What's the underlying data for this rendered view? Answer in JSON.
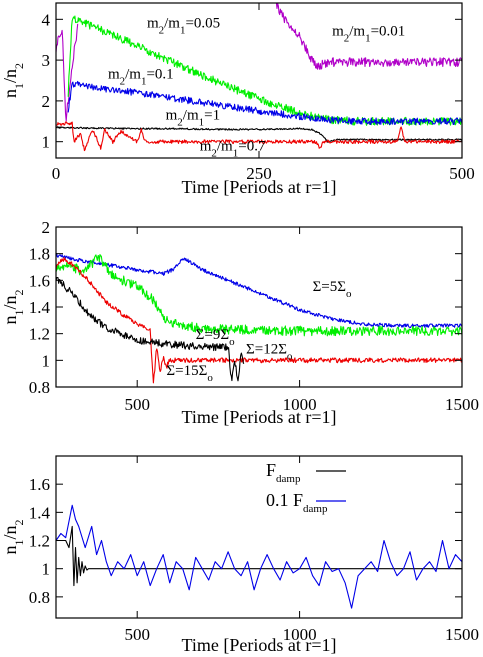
{
  "chart_data": [
    {
      "type": "line",
      "xlabel": "Time [Periods at r=1]",
      "ylabel": "n_1/n_2",
      "xlim": [
        0,
        500
      ],
      "ylim": [
        0.6,
        4.4
      ],
      "xticks": [
        0,
        250,
        500
      ],
      "yticks": [
        1,
        2,
        3,
        4
      ],
      "grid": false,
      "series": [
        {
          "name": "m2/m1=0.01",
          "color": "#b000c8",
          "noise": 0.12,
          "seed": 11,
          "x": [
            0,
            3,
            8,
            12,
            15,
            18,
            22,
            27
          ],
          "y": [
            3.3,
            3.5,
            3.7,
            1.5,
            2.0,
            2.5,
            3.2,
            3.85
          ],
          "x2": [
            268,
            275,
            285,
            300,
            310,
            320,
            340,
            400,
            450,
            500
          ],
          "y2": [
            4.6,
            4.2,
            3.9,
            3.6,
            3.2,
            2.85,
            2.95,
            2.95,
            2.95,
            2.95
          ]
        },
        {
          "name": "m2/m1=0.05",
          "color": "#00ee00",
          "noise": 0.11,
          "seed": 23,
          "x": [
            15,
            20,
            30,
            60,
            100,
            150,
            200,
            250,
            300,
            330,
            370,
            420,
            500
          ],
          "y": [
            2.2,
            4.05,
            3.95,
            3.7,
            3.35,
            2.9,
            2.45,
            2.05,
            1.7,
            1.55,
            1.5,
            1.5,
            1.5
          ]
        },
        {
          "name": "m2/m1=0.1",
          "color": "#0000e8",
          "noise": 0.09,
          "seed": 37,
          "x": [
            15,
            20,
            30,
            60,
            100,
            150,
            200,
            250,
            300,
            330,
            370,
            420,
            500
          ],
          "y": [
            1.8,
            2.4,
            2.4,
            2.3,
            2.2,
            2.05,
            1.9,
            1.75,
            1.62,
            1.55,
            1.5,
            1.5,
            1.5
          ]
        },
        {
          "name": "m2/m1=1",
          "color": "#000000",
          "noise": 0.02,
          "seed": 41,
          "x": [
            0,
            50,
            100,
            150,
            200,
            250,
            300,
            315,
            325,
            335,
            345,
            360,
            400,
            500
          ],
          "y": [
            1.35,
            1.33,
            1.32,
            1.32,
            1.3,
            1.3,
            1.32,
            1.3,
            1.2,
            1.0,
            1.05,
            1.05,
            1.05,
            1.05
          ]
        },
        {
          "name": "m2/m1=0.7",
          "color": "#ee0000",
          "noise": 0.05,
          "seed": 53,
          "x": [
            0,
            20,
            22,
            30,
            35,
            45,
            55,
            60,
            70,
            80,
            100,
            105,
            110,
            130,
            200,
            320,
            325,
            330,
            400,
            420,
            425,
            430,
            500
          ],
          "y": [
            1.45,
            1.45,
            1.0,
            1.2,
            0.8,
            1.3,
            0.85,
            1.3,
            1.0,
            1.25,
            1.0,
            1.3,
            1.0,
            1.0,
            1.0,
            1.0,
            0.85,
            1.0,
            1.0,
            1.0,
            1.35,
            1.0,
            1.0
          ]
        }
      ],
      "annotations": [
        {
          "label": "m2/m1=0.05",
          "base": "m",
          "sub1": "2",
          "mid": "/m",
          "sub2": "1",
          "tail": "=0.05",
          "x": 112,
          "y": 3.8
        },
        {
          "label": "m2/m1=0.01",
          "base": "m",
          "sub1": "2",
          "mid": "/m",
          "sub2": "1",
          "tail": "=0.01",
          "x": 340,
          "y": 3.6
        },
        {
          "label": "m2/m1=0.1",
          "base": "m",
          "sub1": "2",
          "mid": "/m",
          "sub2": "1",
          "tail": "=0.1",
          "x": 64,
          "y": 2.55
        },
        {
          "label": "m2/m1=1",
          "base": "m",
          "sub1": "2",
          "mid": "/m",
          "sub2": "1",
          "tail": "=1",
          "x": 135,
          "y": 1.55
        },
        {
          "label": "m2/m1=0.7",
          "base": "m",
          "sub1": "2",
          "mid": "/m",
          "sub2": "1",
          "tail": "=0.7",
          "x": 177,
          "y": 0.78
        }
      ]
    },
    {
      "type": "line",
      "xlabel": "Time [Periods at r=1]",
      "ylabel": "n_1/n_2",
      "xlim": [
        250,
        1500
      ],
      "ylim": [
        0.8,
        2.0
      ],
      "xticks": [
        500,
        1000,
        1500
      ],
      "yticks": [
        0.8,
        1,
        1.2,
        1.4,
        1.6,
        1.8,
        2
      ],
      "grid": false,
      "series": [
        {
          "name": "Σ=5Σo",
          "color": "#0000e8",
          "noise": 0.015,
          "seed": 61,
          "x": [
            250,
            300,
            400,
            500,
            580,
            610,
            640,
            650,
            700,
            800,
            900,
            1000,
            1100,
            1200,
            1300,
            1400,
            1500
          ],
          "y": [
            1.79,
            1.76,
            1.72,
            1.68,
            1.65,
            1.68,
            1.76,
            1.76,
            1.68,
            1.58,
            1.48,
            1.38,
            1.31,
            1.27,
            1.26,
            1.26,
            1.26
          ]
        },
        {
          "name": "Σ=9Σo",
          "color": "#00ee00",
          "noise": 0.04,
          "seed": 67,
          "x": [
            250,
            300,
            330,
            360,
            380,
            400,
            430,
            500,
            550,
            580,
            600,
            650,
            700,
            800,
            1000,
            1500
          ],
          "y": [
            1.7,
            1.7,
            1.67,
            1.72,
            1.78,
            1.72,
            1.62,
            1.56,
            1.45,
            1.33,
            1.28,
            1.26,
            1.24,
            1.23,
            1.22,
            1.22
          ]
        },
        {
          "name": "Σ=12Σo",
          "color": "#ee0000",
          "noise": 0.02,
          "seed": 71,
          "x": [
            250,
            270,
            300,
            350,
            400,
            450,
            500,
            540,
            550,
            560,
            570,
            580,
            590,
            600,
            620,
            700,
            1500
          ],
          "y": [
            1.7,
            1.76,
            1.72,
            1.6,
            1.45,
            1.35,
            1.27,
            1.22,
            0.82,
            1.1,
            0.9,
            1.02,
            0.95,
            1.0,
            1.0,
            1.0,
            1.0
          ]
        },
        {
          "name": "Σ=15Σo",
          "color": "#000000",
          "noise": 0.03,
          "seed": 79,
          "x": [
            250,
            300,
            350,
            400,
            450,
            500,
            600,
            700,
            780,
            790,
            800,
            810,
            820,
            830
          ],
          "y": [
            1.62,
            1.5,
            1.35,
            1.25,
            1.2,
            1.15,
            1.12,
            1.1,
            1.1,
            0.85,
            1.0,
            0.85,
            1.05,
            0.98
          ]
        }
      ],
      "annotations": [
        {
          "label": "Σ=5Σo",
          "base": "Σ=5Σ",
          "sub1": "o",
          "mid": "",
          "sub2": "",
          "tail": "",
          "x": 1040,
          "y": 1.52
        },
        {
          "label": "Σ=9Σo",
          "base": "Σ=9Σ",
          "sub1": "o",
          "mid": "",
          "sub2": "",
          "tail": "",
          "x": 680,
          "y": 1.16
        },
        {
          "label": "Σ=12Σo",
          "base": "Σ=12Σ",
          "sub1": "o",
          "mid": "",
          "sub2": "",
          "tail": "",
          "x": 835,
          "y": 1.05
        },
        {
          "label": "Σ=15Σo",
          "base": "Σ=15Σ",
          "sub1": "o",
          "mid": "",
          "sub2": "",
          "tail": "",
          "x": 590,
          "y": 0.89
        }
      ]
    },
    {
      "type": "line",
      "xlabel": "Time [Periods at r=1]",
      "ylabel": "n_1/n_2",
      "xlim": [
        250,
        1500
      ],
      "ylim": [
        0.65,
        1.8
      ],
      "xticks": [
        500,
        1000,
        1500
      ],
      "yticks": [
        0.8,
        1,
        1.2,
        1.4,
        1.6
      ],
      "grid": false,
      "legend": {
        "position": "top-center",
        "entries": [
          {
            "label": "F",
            "sub": "damp",
            "color": "#000000"
          },
          {
            "label": "0.1 F",
            "sub": "damp",
            "color": "#0000e8"
          }
        ]
      },
      "series": [
        {
          "name": "F_damp",
          "color": "#000000",
          "noise": 0.0,
          "seed": 0,
          "x": [
            250,
            280,
            290,
            300,
            305,
            310,
            315,
            320,
            325,
            330,
            335,
            340,
            345,
            350,
            360,
            1500
          ],
          "y": [
            1.2,
            1.2,
            1.15,
            1.3,
            0.88,
            1.15,
            0.9,
            1.08,
            0.95,
            1.05,
            0.97,
            1.02,
            0.99,
            1.0,
            1.0,
            1.0
          ]
        },
        {
          "name": "0.1 F_damp",
          "color": "#0000e8",
          "noise": 0.0,
          "seed": 0,
          "x": [
            250,
            265,
            280,
            300,
            310,
            320,
            340,
            360,
            375,
            390,
            405,
            420,
            440,
            460,
            480,
            500,
            520,
            540,
            560,
            580,
            600,
            620,
            640,
            660,
            680,
            700,
            720,
            740,
            760,
            780,
            800,
            820,
            840,
            860,
            880,
            900,
            920,
            940,
            960,
            980,
            1000,
            1020,
            1040,
            1060,
            1080,
            1100,
            1120,
            1140,
            1160,
            1180,
            1200,
            1220,
            1240,
            1260,
            1280,
            1300,
            1320,
            1340,
            1360,
            1380,
            1400,
            1420,
            1440,
            1460,
            1480,
            1500
          ],
          "y": [
            1.2,
            1.25,
            1.22,
            1.45,
            1.35,
            1.3,
            1.15,
            1.3,
            1.1,
            1.2,
            1.05,
            0.95,
            1.05,
            1.0,
            1.1,
            0.95,
            1.05,
            0.88,
            1.0,
            1.1,
            0.9,
            1.05,
            1.0,
            0.85,
            1.08,
            1.0,
            0.92,
            1.05,
            1.0,
            1.12,
            1.0,
            0.95,
            1.05,
            0.85,
            1.0,
            1.1,
            1.0,
            0.92,
            1.05,
            0.97,
            1.0,
            1.08,
            0.95,
            0.88,
            1.05,
            0.98,
            1.0,
            0.9,
            0.72,
            0.95,
            1.0,
            1.05,
            0.98,
            1.2,
            1.05,
            0.95,
            1.0,
            1.12,
            0.92,
            1.0,
            1.05,
            0.98,
            1.2,
            1.0,
            1.1,
            1.05
          ]
        }
      ],
      "annotations": []
    }
  ]
}
